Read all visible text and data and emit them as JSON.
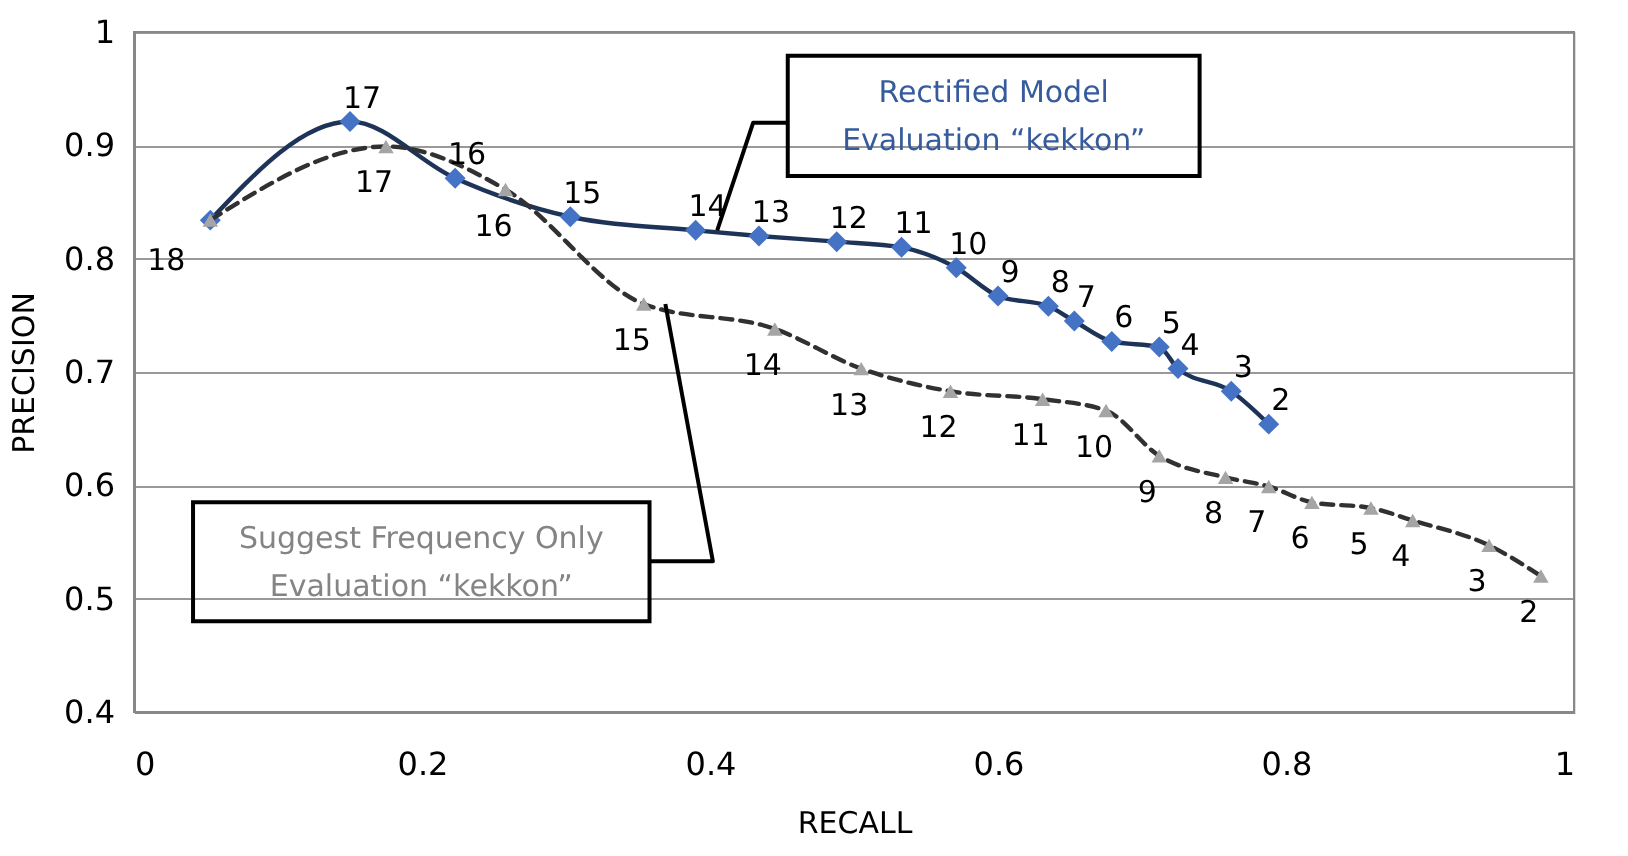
{
  "chart_data": {
    "type": "line",
    "xlabel": "RECALL",
    "ylabel": "PRECISION",
    "xlim": [
      0,
      1
    ],
    "ylim": [
      0.4,
      1
    ],
    "xticks": [
      0,
      0.2,
      0.4,
      0.6,
      0.8,
      1
    ],
    "yticks": [
      0.4,
      0.5,
      0.6,
      0.7,
      0.8,
      0.9,
      1
    ],
    "grid": "y",
    "series": [
      {
        "name": "Rectified Model Evaluation “kekkon”",
        "color": "#4472c4",
        "marker": "diamond",
        "line_style": "solid",
        "x": [
          0.053,
          0.15,
          0.223,
          0.303,
          0.39,
          0.434,
          0.488,
          0.533,
          0.571,
          0.6,
          0.635,
          0.653,
          0.679,
          0.712,
          0.725,
          0.762,
          0.788
        ],
        "values": [
          0.834,
          0.921,
          0.871,
          0.837,
          0.825,
          0.82,
          0.815,
          0.81,
          0.792,
          0.767,
          0.758,
          0.745,
          0.727,
          0.722,
          0.703,
          0.683,
          0.654
        ]
      },
      {
        "name": "Suggest Frequency Only Evaluation “kekkon”",
        "color": "#a5a5a5",
        "marker": "triangle",
        "line_style": "dashed",
        "x": [
          0.053,
          0.175,
          0.258,
          0.354,
          0.445,
          0.505,
          0.567,
          0.631,
          0.675,
          0.712,
          0.758,
          0.788,
          0.818,
          0.859,
          0.888,
          0.941,
          0.977
        ],
        "values": [
          0.834,
          0.899,
          0.861,
          0.76,
          0.738,
          0.703,
          0.683,
          0.676,
          0.666,
          0.626,
          0.607,
          0.599,
          0.585,
          0.58,
          0.569,
          0.547,
          0.52
        ]
      }
    ],
    "annotations": [
      {
        "text": "18",
        "x": 0.053,
        "y": 0.834
      },
      {
        "text": "17",
        "x": 0.15,
        "y": 0.921
      },
      {
        "text": "16",
        "x": 0.223,
        "y": 0.871
      },
      {
        "text": "15",
        "x": 0.303,
        "y": 0.837
      },
      {
        "text": "14",
        "x": 0.39,
        "y": 0.825
      },
      {
        "text": "13",
        "x": 0.434,
        "y": 0.82
      },
      {
        "text": "12",
        "x": 0.488,
        "y": 0.815
      },
      {
        "text": "11",
        "x": 0.533,
        "y": 0.81
      },
      {
        "text": "10",
        "x": 0.571,
        "y": 0.792
      },
      {
        "text": "9",
        "x": 0.6,
        "y": 0.767
      },
      {
        "text": "8",
        "x": 0.635,
        "y": 0.758
      },
      {
        "text": "7",
        "x": 0.653,
        "y": 0.745
      },
      {
        "text": "6",
        "x": 0.679,
        "y": 0.727
      },
      {
        "text": "5",
        "x": 0.712,
        "y": 0.722
      },
      {
        "text": "4",
        "x": 0.725,
        "y": 0.703
      },
      {
        "text": "3",
        "x": 0.762,
        "y": 0.683
      },
      {
        "text": "2",
        "x": 0.788,
        "y": 0.654
      },
      {
        "text": "17",
        "x": 0.175,
        "y": 0.899
      },
      {
        "text": "16",
        "x": 0.258,
        "y": 0.861
      },
      {
        "text": "15",
        "x": 0.354,
        "y": 0.76
      },
      {
        "text": "14",
        "x": 0.445,
        "y": 0.738
      },
      {
        "text": "13",
        "x": 0.505,
        "y": 0.703
      },
      {
        "text": "12",
        "x": 0.567,
        "y": 0.683
      },
      {
        "text": "11",
        "x": 0.631,
        "y": 0.676
      },
      {
        "text": "10",
        "x": 0.675,
        "y": 0.666
      },
      {
        "text": "9",
        "x": 0.712,
        "y": 0.626
      },
      {
        "text": "8",
        "x": 0.758,
        "y": 0.607
      },
      {
        "text": "7",
        "x": 0.788,
        "y": 0.599
      },
      {
        "text": "6",
        "x": 0.818,
        "y": 0.585
      },
      {
        "text": "5",
        "x": 0.859,
        "y": 0.58
      },
      {
        "text": "4",
        "x": 0.888,
        "y": 0.569
      },
      {
        "text": "3",
        "x": 0.941,
        "y": 0.547
      },
      {
        "text": "2",
        "x": 0.977,
        "y": 0.52
      }
    ]
  }
}
